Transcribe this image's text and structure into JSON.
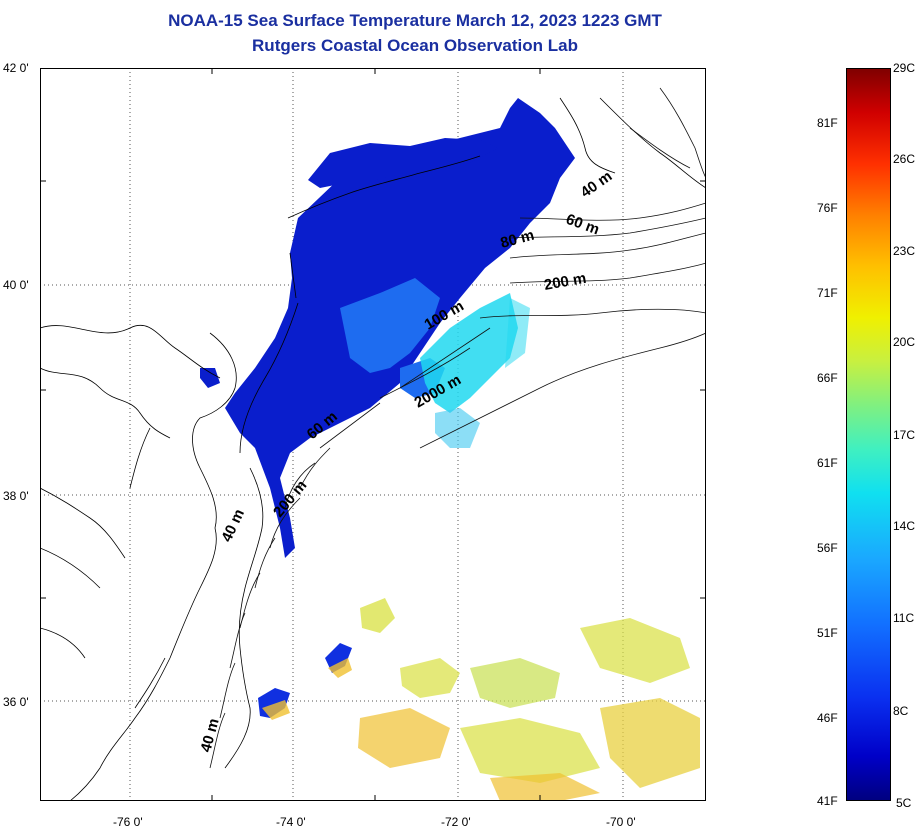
{
  "header": {
    "title": "NOAA-15 Sea Surface Temperature March 12, 2023 1223 GMT",
    "subtitle": "Rutgers Coastal Ocean Observation Lab"
  },
  "axes": {
    "y_ticks": [
      "42 0'",
      "40 0'",
      "38 0'",
      "36 0'"
    ],
    "x_ticks": [
      "-76 0'",
      "-74 0'",
      "-72 0'",
      "-70 0'"
    ]
  },
  "contours": {
    "labels": [
      "40 m",
      "60 m",
      "80 m",
      "200 m",
      "100 m",
      "2000 m",
      "60 m",
      "200 m",
      "40 m",
      "40 m"
    ]
  },
  "colorbar": {
    "fahrenheit": [
      "81F",
      "76F",
      "71F",
      "66F",
      "61F",
      "56F",
      "51F",
      "46F",
      "41F"
    ],
    "celsius": [
      "29C",
      "26C",
      "23C",
      "20C",
      "17C",
      "14C",
      "11C",
      "8C",
      "5C"
    ]
  },
  "colors": {
    "title": "#1a2fa0",
    "cold": "#0a1ecc",
    "cool": "#1e6cf0",
    "mid": "#20d8f0",
    "warm": "#d8e040",
    "hot": "#f0c030"
  }
}
